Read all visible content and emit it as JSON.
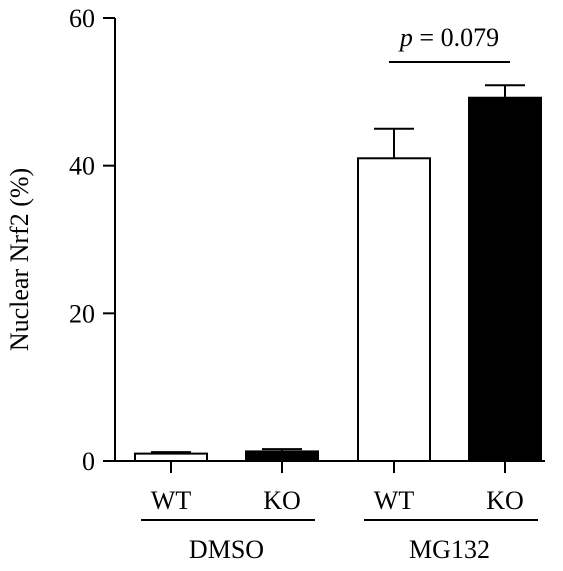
{
  "chart_data": {
    "type": "bar",
    "title": "",
    "xlabel": "",
    "ylabel": "Nuclear Nrf2 (%)",
    "ylim": [
      0,
      60
    ],
    "yticks": [
      0,
      20,
      40,
      60
    ],
    "grid": false,
    "categories": [
      "WT",
      "KO",
      "WT",
      "KO"
    ],
    "groups": [
      {
        "label": "DMSO",
        "categories": [
          0,
          1
        ]
      },
      {
        "label": "MG132",
        "categories": [
          2,
          3
        ]
      }
    ],
    "values": [
      1.0,
      1.3,
      41.0,
      49.2
    ],
    "errors": [
      0.2,
      0.3,
      4.0,
      1.7
    ],
    "fills": [
      "#ffffff",
      "#000000",
      "#ffffff",
      "#000000"
    ],
    "annotation": {
      "p_symbol": "p",
      "text": " = 0.079",
      "between": [
        2,
        3
      ]
    }
  }
}
